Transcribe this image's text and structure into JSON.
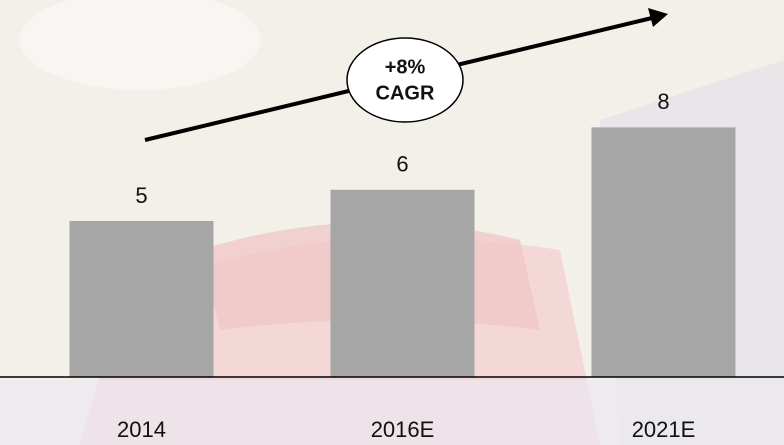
{
  "chart_data": {
    "type": "bar",
    "categories": [
      "2014",
      "2016E",
      "2021E"
    ],
    "values": [
      5,
      6,
      8
    ],
    "color": "#a6a6a6",
    "ylim": [
      0,
      12
    ],
    "annotation": [
      "+8%",
      "CAGR"
    ]
  }
}
